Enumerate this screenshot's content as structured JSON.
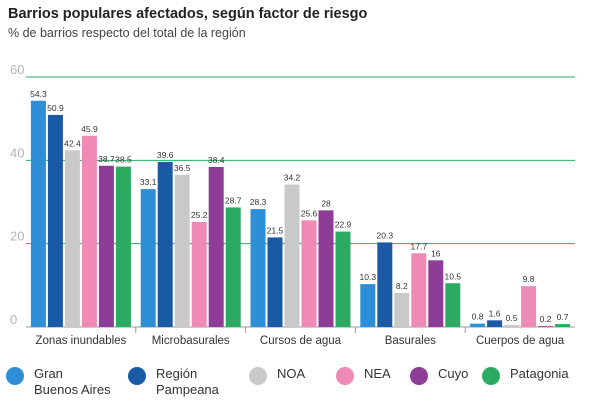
{
  "chart_data": {
    "type": "bar",
    "title": "Barrios populares afectados, según factor de riesgo",
    "subtitle": "% de barrios respecto del total de la región",
    "categories": [
      "Zonas inundables",
      "Microbasurales",
      "Cursos de agua",
      "Basurales",
      "Cuerpos de agua"
    ],
    "series": [
      {
        "name": "Gran Buenos Aires",
        "color": "#2e8fd6",
        "values": [
          54.3,
          33.1,
          28.3,
          10.3,
          0.8
        ]
      },
      {
        "name": "Región Pampeana",
        "color": "#1a5aa5",
        "values": [
          50.9,
          39.6,
          21.5,
          20.3,
          1.6
        ]
      },
      {
        "name": "NOA",
        "color": "#c9c9c9",
        "values": [
          42.4,
          36.5,
          34.2,
          8.2,
          0.5
        ]
      },
      {
        "name": "NEA",
        "color": "#ee8ab5",
        "values": [
          45.9,
          25.2,
          25.6,
          17.7,
          9.8
        ]
      },
      {
        "name": "Cuyo",
        "color": "#8e3d97",
        "values": [
          38.7,
          38.4,
          28,
          16,
          0.2
        ]
      },
      {
        "name": "Patagonia",
        "color": "#2bab62",
        "values": [
          38.5,
          28.7,
          22.9,
          10.5,
          0.7
        ]
      }
    ],
    "value_labels": [
      [
        "54.3",
        "33.1",
        "28.3",
        "10.3",
        "0.8"
      ],
      [
        "50.9",
        "39.6",
        "21.5",
        "20.3",
        "1.6"
      ],
      [
        "42.4",
        "36.5",
        "34.2",
        "8.2",
        "0.5"
      ],
      [
        "45.9",
        "25.2",
        "25.6",
        "17.7",
        "9.8"
      ],
      [
        "38.7",
        "38.4",
        "28",
        "16",
        "0.2"
      ],
      [
        "38.5",
        "28.7",
        "22.9",
        "10.5",
        "0.7"
      ]
    ],
    "yticks": [
      "0",
      "20",
      "40",
      "60"
    ],
    "ylim": [
      0,
      60
    ],
    "gridline_color": "#2bab62",
    "legend_position": "bottom"
  },
  "legend_labels": [
    "Gran\nBuenos Aires",
    "Región\nPampeana",
    "NOA",
    "NEA",
    "Cuyo",
    "Patagonia"
  ]
}
